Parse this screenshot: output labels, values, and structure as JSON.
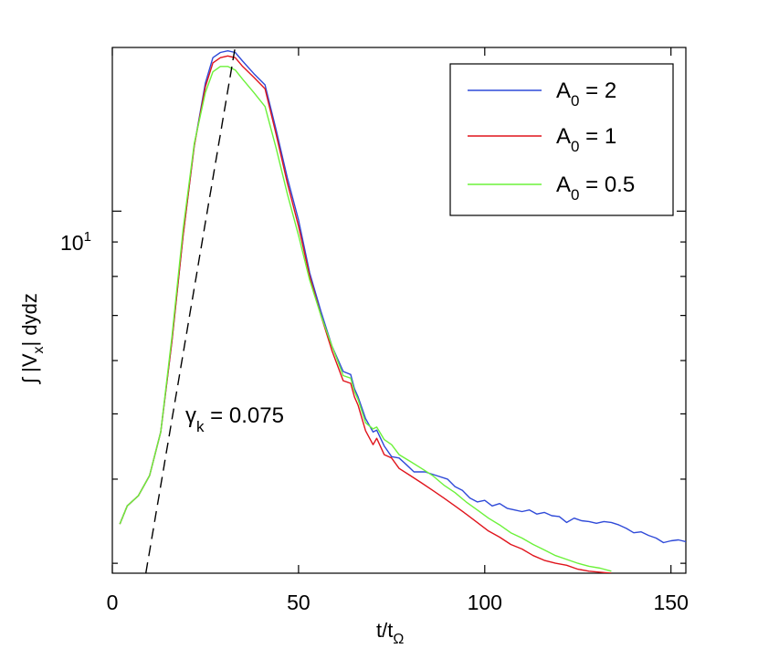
{
  "chart_data": {
    "type": "line",
    "title": "",
    "xlabel": "t/t",
    "xlabel_sub": "Ω",
    "ylabel_prefix": "∫ |V",
    "ylabel_sub": "x",
    "ylabel_suffix": "| dydz",
    "xlim": [
      0,
      154
    ],
    "ylim": [
      2.9,
      17.5
    ],
    "yscale": "log",
    "xticks": [
      0,
      50,
      100,
      150
    ],
    "xtick_labels": [
      "0",
      "50",
      "100",
      "150"
    ],
    "yticks_major": [
      10
    ],
    "ytick_major_label": {
      "base": "10",
      "exp": "1"
    },
    "yticks_minor": [
      3,
      4,
      5,
      6,
      7,
      8,
      9
    ],
    "grid": false,
    "legend_position": "top-right",
    "series": [
      {
        "name": "A0 = 2",
        "label_main": "A",
        "label_sub": "0",
        "label_rest": " = 2",
        "color": "#2f4ad8",
        "x": [
          2,
          4,
          7,
          10,
          13,
          16,
          19,
          22,
          25,
          27,
          29,
          31,
          33,
          35,
          38,
          41,
          44,
          47,
          50,
          53,
          56,
          59,
          62,
          64,
          65,
          66,
          68,
          70,
          71,
          73,
          75,
          77,
          79,
          81,
          84,
          87,
          90,
          92,
          94,
          96,
          98,
          100,
          102,
          104,
          106,
          108,
          110,
          112,
          114,
          116,
          118,
          120,
          122,
          124,
          126,
          128,
          130,
          132,
          134,
          136,
          138,
          140,
          142,
          144,
          146,
          148,
          150,
          152,
          154
        ],
        "y": [
          3.43,
          3.65,
          3.78,
          4.05,
          4.7,
          6.4,
          9.2,
          12.5,
          15.5,
          16.9,
          17.2,
          17.3,
          17.2,
          16.7,
          16.0,
          15.4,
          13.2,
          11.2,
          9.7,
          8.1,
          7.1,
          6.3,
          5.78,
          5.72,
          5.45,
          5.3,
          4.92,
          4.7,
          4.73,
          4.48,
          4.32,
          4.3,
          4.2,
          4.1,
          4.1,
          4.05,
          4.0,
          3.9,
          3.85,
          3.75,
          3.7,
          3.72,
          3.65,
          3.68,
          3.62,
          3.6,
          3.58,
          3.6,
          3.55,
          3.57,
          3.53,
          3.52,
          3.45,
          3.5,
          3.47,
          3.46,
          3.44,
          3.46,
          3.45,
          3.42,
          3.38,
          3.33,
          3.34,
          3.3,
          3.27,
          3.22,
          3.24,
          3.25,
          3.23
        ]
      },
      {
        "name": "A0 = 1",
        "label_main": "A",
        "label_sub": "0",
        "label_rest": " = 1",
        "color": "#e0141c",
        "x": [
          2,
          4,
          7,
          10,
          13,
          16,
          19,
          22,
          25,
          27,
          29,
          31,
          33,
          35,
          38,
          41,
          44,
          47,
          50,
          53,
          56,
          59,
          62,
          64,
          65,
          66,
          68,
          70,
          71,
          73,
          75,
          77,
          80,
          83,
          86,
          89,
          92,
          95,
          98,
          101,
          104,
          107,
          110,
          113,
          116,
          119,
          122,
          125,
          128,
          131,
          134
        ],
        "y": [
          3.43,
          3.65,
          3.78,
          4.05,
          4.7,
          6.4,
          9.2,
          12.5,
          15.3,
          16.6,
          16.9,
          17.0,
          16.9,
          16.4,
          15.8,
          15.2,
          13.0,
          11.0,
          9.5,
          8.0,
          7.0,
          6.2,
          5.6,
          5.55,
          5.3,
          5.15,
          4.72,
          4.5,
          4.6,
          4.35,
          4.3,
          4.15,
          4.05,
          3.95,
          3.85,
          3.75,
          3.65,
          3.55,
          3.45,
          3.35,
          3.28,
          3.2,
          3.15,
          3.08,
          3.03,
          3.0,
          2.98,
          2.94,
          2.92,
          2.91,
          2.9
        ]
      },
      {
        "name": "A0 = 0.5",
        "label_main": "A",
        "label_sub": "0",
        "label_rest": " = 0.5",
        "color": "#6cf23a",
        "x": [
          2,
          4,
          7,
          10,
          13,
          16,
          19,
          22,
          25,
          27,
          29,
          31,
          33,
          35,
          38,
          41,
          44,
          47,
          50,
          53,
          56,
          59,
          62,
          64,
          65,
          66,
          68,
          70,
          71,
          73,
          75,
          77,
          80,
          83,
          86,
          89,
          92,
          95,
          98,
          101,
          104,
          107,
          110,
          113,
          116,
          119,
          122,
          125,
          128,
          131,
          134
        ],
        "y": [
          3.43,
          3.65,
          3.78,
          4.05,
          4.7,
          6.5,
          9.4,
          12.6,
          15.0,
          16.1,
          16.4,
          16.4,
          16.2,
          15.7,
          15.0,
          14.3,
          12.4,
          10.6,
          9.2,
          7.9,
          7.0,
          6.3,
          5.7,
          5.65,
          5.4,
          5.25,
          4.85,
          4.75,
          4.78,
          4.58,
          4.5,
          4.35,
          4.25,
          4.15,
          4.05,
          3.92,
          3.82,
          3.7,
          3.6,
          3.5,
          3.42,
          3.33,
          3.27,
          3.2,
          3.14,
          3.08,
          3.04,
          3.0,
          2.97,
          2.95,
          2.92
        ]
      }
    ],
    "fit_line": {
      "label": "γk = 0.075",
      "label_main": "γ",
      "label_sub": "k",
      "label_rest": " = 0.075",
      "gamma": 0.075,
      "style": "dashed",
      "color": "#000000",
      "x0": 9,
      "y0": 2.9
    }
  }
}
